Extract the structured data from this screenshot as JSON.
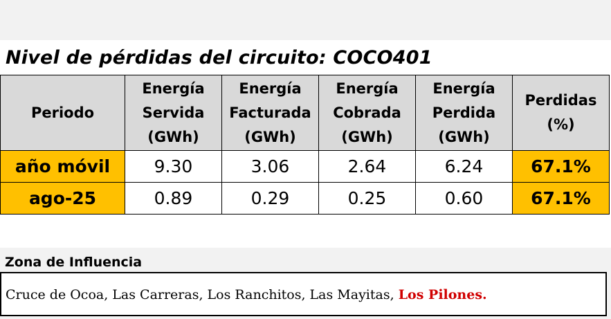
{
  "title": "Nivel de pérdidas del circuito: COCO401",
  "table": {
    "headers": [
      {
        "lines": [
          "Periodo"
        ]
      },
      {
        "lines": [
          "Energía",
          "Servida",
          "(GWh)"
        ]
      },
      {
        "lines": [
          "Energía",
          "Facturada",
          "(GWh)"
        ]
      },
      {
        "lines": [
          "Energía",
          "Cobrada",
          "(GWh)"
        ]
      },
      {
        "lines": [
          "Energía",
          "Perdida",
          "(GWh)"
        ]
      },
      {
        "lines": [
          "Perdidas",
          "(%)"
        ]
      }
    ],
    "rows": [
      {
        "period": "año móvil",
        "servida": "9.30",
        "facturada": "3.06",
        "cobrada": "2.64",
        "perdida": "6.24",
        "perdidas_pct": "67.1%"
      },
      {
        "period": "ago-25",
        "servida": "0.89",
        "facturada": "0.29",
        "cobrada": "0.25",
        "perdida": "0.60",
        "perdidas_pct": "67.1%"
      }
    ]
  },
  "zone": {
    "label": "Zona de Influencia",
    "places": "Cruce de Ocoa, Las Carreras, Los Ranchitos, Las Mayitas,",
    "highlight": "Los Pilones."
  },
  "colors": {
    "header_bg": "#d9d9d9",
    "highlight_bg": "#ffc000",
    "highlight_text": "#d00000"
  }
}
